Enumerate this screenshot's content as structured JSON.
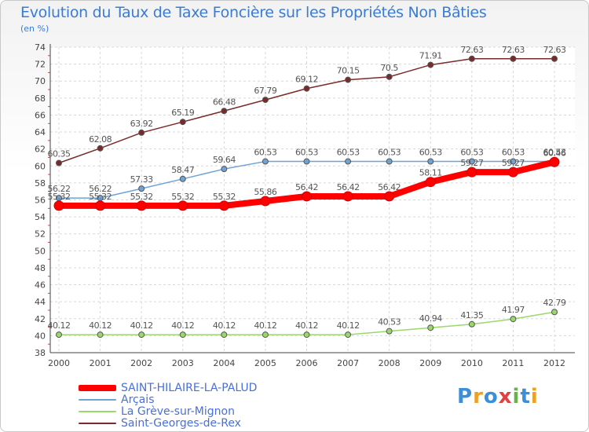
{
  "header": {
    "title": "Evolution du Taux de Taxe Foncière sur les Propriétés Non Bâties",
    "unit": "(en %)"
  },
  "logo": {
    "text": "Proxiti"
  },
  "chart_data": {
    "type": "line",
    "title": "Evolution du Taux de Taxe Foncière sur les Propriétés Non Bâties",
    "ylabel": "(en %)",
    "xlabel": "",
    "categories": [
      "2000",
      "2001",
      "2002",
      "2003",
      "2004",
      "2005",
      "2006",
      "2007",
      "2008",
      "2009",
      "2010",
      "2011",
      "2012"
    ],
    "ylim": [
      38,
      74
    ],
    "yticks": [
      38,
      40,
      42,
      44,
      46,
      48,
      50,
      52,
      54,
      56,
      58,
      60,
      62,
      64,
      66,
      68,
      70,
      72,
      74
    ],
    "grid": true,
    "legend_position": "bottom-left",
    "series": [
      {
        "name": "SAINT-HILAIRE-LA-PALUD",
        "color": "#ff0000",
        "emphasis": true,
        "values": [
          55.32,
          55.32,
          55.32,
          55.32,
          55.32,
          55.86,
          56.42,
          56.42,
          56.42,
          58.11,
          59.27,
          59.27,
          60.46
        ]
      },
      {
        "name": "Arçais",
        "color": "#6fa3d8",
        "emphasis": false,
        "values": [
          56.22,
          56.22,
          57.33,
          58.47,
          59.64,
          60.53,
          60.53,
          60.53,
          60.53,
          60.53,
          60.53,
          60.53,
          60.53
        ]
      },
      {
        "name": "La Grève-sur-Mignon",
        "color": "#9ad86a",
        "emphasis": false,
        "values": [
          40.12,
          40.12,
          40.12,
          40.12,
          40.12,
          40.12,
          40.12,
          40.12,
          40.53,
          40.94,
          41.35,
          41.97,
          42.79
        ]
      },
      {
        "name": "Saint-Georges-de-Rex",
        "color": "#7a2a2a",
        "emphasis": false,
        "values": [
          60.35,
          62.08,
          63.92,
          65.19,
          66.48,
          67.79,
          69.12,
          70.15,
          70.5,
          71.91,
          72.63,
          72.63,
          72.63
        ]
      }
    ]
  }
}
